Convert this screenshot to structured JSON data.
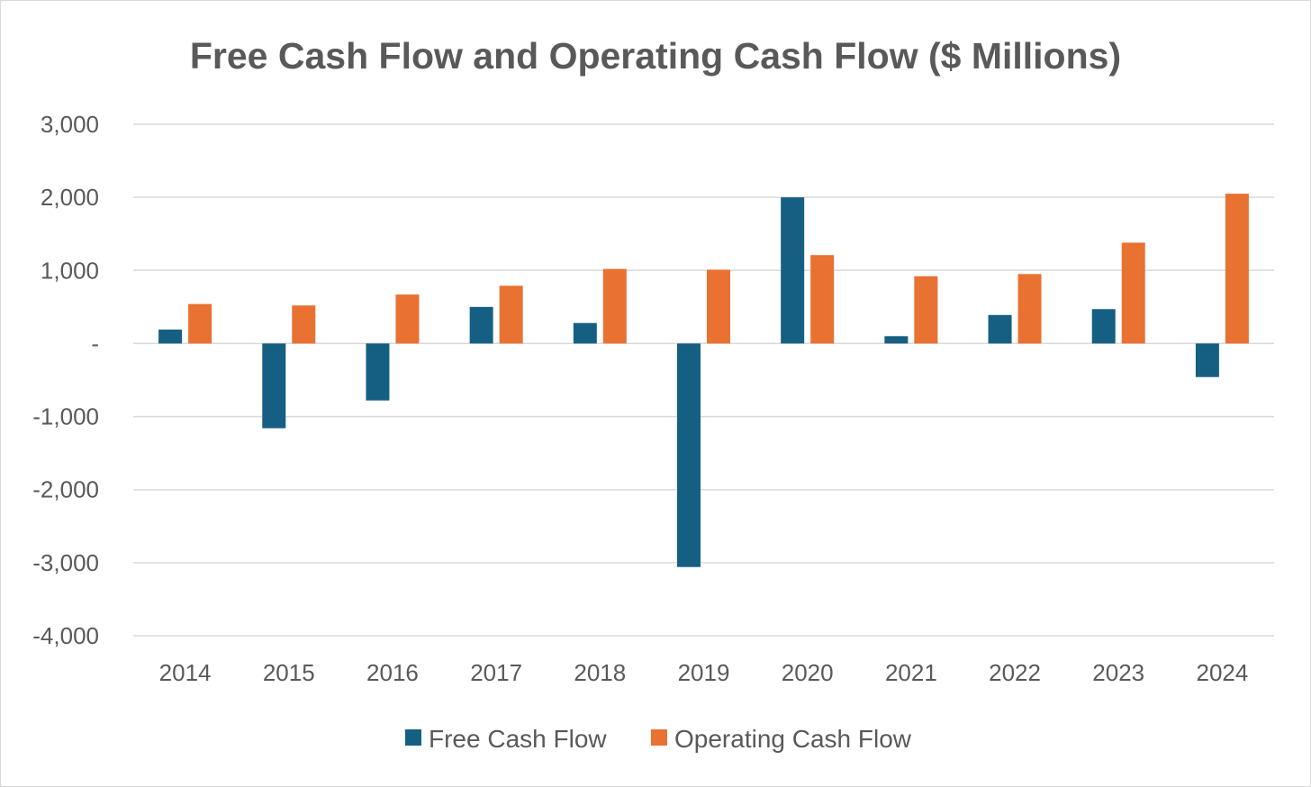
{
  "chart_data": {
    "type": "bar",
    "title": "Free Cash Flow and Operating Cash Flow ($ Millions)",
    "xlabel": "",
    "ylabel": "",
    "categories": [
      "2014",
      "2015",
      "2016",
      "2017",
      "2018",
      "2019",
      "2020",
      "2021",
      "2022",
      "2023",
      "2024"
    ],
    "series": [
      {
        "name": "Free Cash Flow",
        "color": "#156082",
        "values": [
          190,
          -1160,
          -780,
          500,
          280,
          -3060,
          2000,
          100,
          390,
          470,
          -460
        ]
      },
      {
        "name": "Operating Cash Flow",
        "color": "#E97132",
        "values": [
          540,
          520,
          670,
          790,
          1020,
          1010,
          1210,
          920,
          950,
          1380,
          2050
        ]
      }
    ],
    "ylim": [
      -4000,
      3000
    ],
    "yticks": [
      3000,
      2000,
      1000,
      0,
      -1000,
      -2000,
      -3000,
      -4000
    ],
    "ytick_labels": [
      "3,000",
      "2,000",
      "1,000",
      "-",
      "-1,000",
      "-2,000",
      "-3,000",
      "-4,000"
    ],
    "grid": true,
    "legend_position": "bottom"
  }
}
